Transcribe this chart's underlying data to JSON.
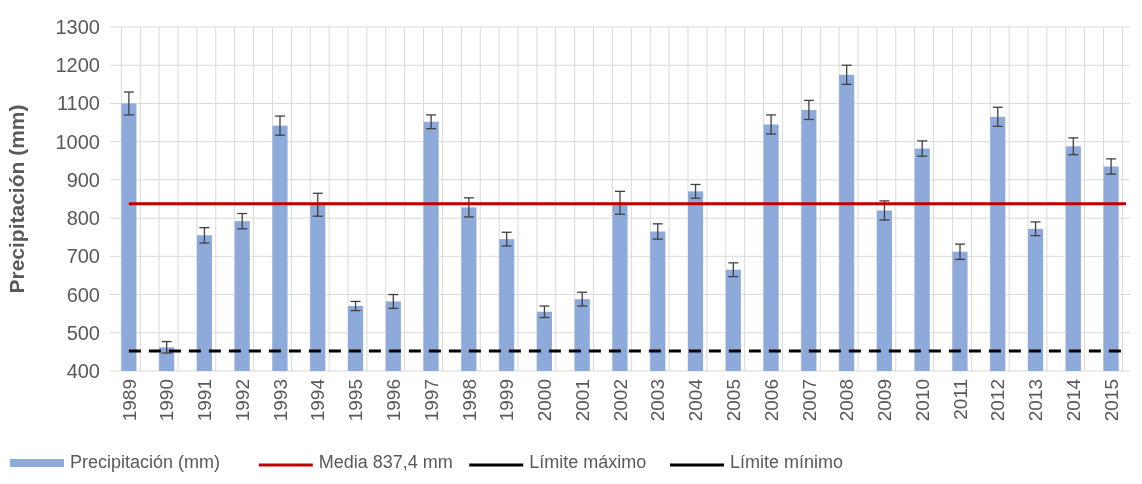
{
  "chart_data": {
    "type": "bar",
    "ylabel": "Precipitación (mm)",
    "categories": [
      "1989",
      "1990",
      "1991",
      "1992",
      "1993",
      "1994",
      "1995",
      "1996",
      "1997",
      "1998",
      "1999",
      "2000",
      "2001",
      "2002",
      "2003",
      "2004",
      "2005",
      "2006",
      "2007",
      "2008",
      "2009",
      "2010",
      "2011",
      "2012",
      "2013",
      "2014",
      "2015"
    ],
    "series": [
      {
        "name": "Precipitación (mm)",
        "color": "#8eaadb",
        "values": [
          1100,
          462,
          755,
          792,
          1042,
          835,
          570,
          582,
          1052,
          828,
          745,
          555,
          588,
          840,
          765,
          870,
          665,
          1045,
          1083,
          1175,
          820,
          982,
          712,
          1065,
          772,
          988,
          935
        ],
        "errors": [
          30,
          15,
          20,
          20,
          25,
          30,
          12,
          18,
          18,
          25,
          18,
          15,
          18,
          30,
          20,
          18,
          18,
          25,
          25,
          25,
          25,
          20,
          20,
          25,
          18,
          22,
          20
        ]
      }
    ],
    "ylim": [
      400,
      1300
    ],
    "yticks": [
      400,
      500,
      600,
      700,
      800,
      900,
      1000,
      1100,
      1200,
      1300
    ],
    "grid": true,
    "legend": "bottom",
    "ref_lines": [
      {
        "axis": "y",
        "value": 837.4,
        "label": "Media 837,4 mm",
        "color": "#c00000",
        "line_style": "solid"
      },
      {
        "axis": "y",
        "value": 452,
        "label": "Límite mínimo",
        "color": "#000000",
        "line_style": "dashed"
      }
    ],
    "annotations": [
      "Límite máximo"
    ]
  }
}
